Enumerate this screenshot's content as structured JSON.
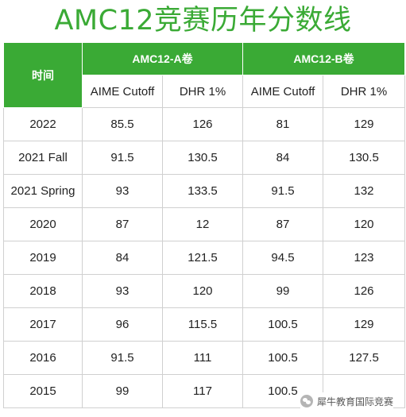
{
  "title": "AMC12竞赛历年分数线",
  "table": {
    "time_header": "时间",
    "group_a": "AMC12-A卷",
    "group_b": "AMC12-B卷",
    "sub_headers": [
      "AIME Cutoff",
      "DHR 1%",
      "AIME Cutoff",
      "DHR 1%"
    ],
    "rows": [
      [
        "2022",
        "85.5",
        "126",
        "81",
        "129"
      ],
      [
        "2021 Fall",
        "91.5",
        "130.5",
        "84",
        "130.5"
      ],
      [
        "2021 Spring",
        "93",
        "133.5",
        "91.5",
        "132"
      ],
      [
        "2020",
        "87",
        "12",
        "87",
        "120"
      ],
      [
        "2019",
        "84",
        "121.5",
        "94.5",
        "123"
      ],
      [
        "2018",
        "93",
        "120",
        "99",
        "126"
      ],
      [
        "2017",
        "96",
        "115.5",
        "100.5",
        "129"
      ],
      [
        "2016",
        "91.5",
        "111",
        "100.5",
        "127.5"
      ],
      [
        "2015",
        "99",
        "117",
        "100.5",
        ""
      ]
    ]
  },
  "watermark": {
    "text": "犀牛教育国际竞赛",
    "icon": "wechat-icon"
  },
  "colors": {
    "accent": "#3aaa35",
    "border": "#d0d0d0"
  }
}
